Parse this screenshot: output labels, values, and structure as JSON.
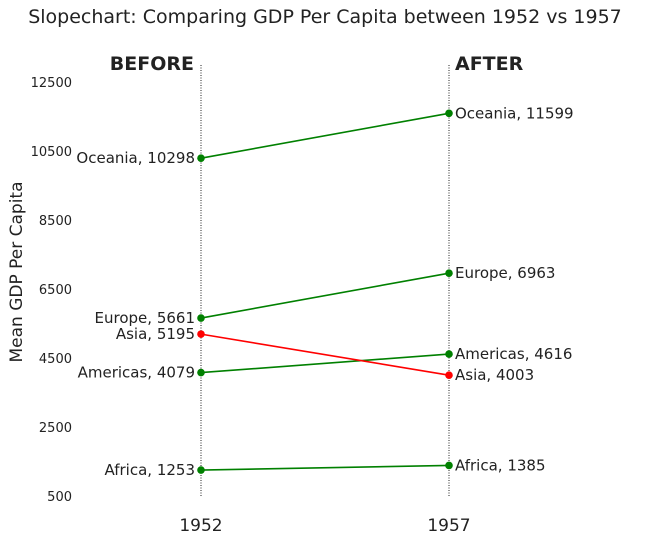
{
  "chart_data": {
    "type": "line",
    "title": "Slopechart: Comparing GDP Per Capita between 1952 vs 1957",
    "xlabel": "",
    "ylabel": "Mean GDP Per Capita",
    "categories": [
      "1952",
      "1957"
    ],
    "ylim": [
      500,
      13000
    ],
    "yticks": [
      500,
      2500,
      4500,
      6500,
      8500,
      10500,
      12500
    ],
    "headers": {
      "before": "BEFORE",
      "after": "AFTER"
    },
    "grid": false,
    "colors": {
      "increase": "#008000",
      "decrease": "#ff0000"
    },
    "series": [
      {
        "name": "Africa",
        "values": [
          1253,
          1385
        ],
        "labels": [
          "Africa, 1253",
          "Africa, 1385"
        ]
      },
      {
        "name": "Americas",
        "values": [
          4079,
          4616
        ],
        "labels": [
          "Americas, 4079",
          "Americas, 4616"
        ]
      },
      {
        "name": "Asia",
        "values": [
          5195,
          4003
        ],
        "labels": [
          "Asia, 5195",
          "Asia, 4003"
        ]
      },
      {
        "name": "Europe",
        "values": [
          5661,
          6963
        ],
        "labels": [
          "Europe, 5661",
          "Europe, 6963"
        ]
      },
      {
        "name": "Oceania",
        "values": [
          10298,
          11599
        ],
        "labels": [
          "Oceania, 10298",
          "Oceania, 11599"
        ]
      }
    ]
  }
}
